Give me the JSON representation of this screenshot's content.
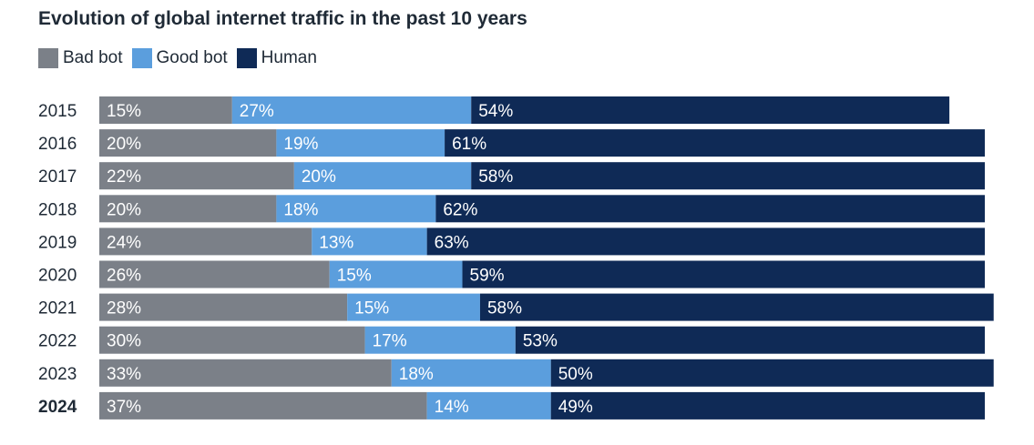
{
  "chart_data": {
    "type": "bar",
    "orientation": "horizontal",
    "stacked": true,
    "title": "Evolution of global internet traffic in the past 10 years",
    "categories": [
      "2015",
      "2016",
      "2017",
      "2018",
      "2019",
      "2020",
      "2021",
      "2022",
      "2023",
      "2024"
    ],
    "highlight_category": "2024",
    "series": [
      {
        "name": "Bad bot",
        "color": "#7b8088",
        "values": [
          15,
          20,
          22,
          20,
          24,
          26,
          28,
          30,
          33,
          37
        ]
      },
      {
        "name": "Good bot",
        "color": "#5b9edd",
        "values": [
          27,
          19,
          20,
          18,
          13,
          15,
          15,
          17,
          18,
          14
        ]
      },
      {
        "name": "Human",
        "color": "#0f2a56",
        "values": [
          54,
          61,
          58,
          62,
          63,
          59,
          58,
          53,
          50,
          49
        ]
      }
    ],
    "value_suffix": "%",
    "xlim": [
      0,
      100
    ],
    "grid": false,
    "legend_position": "top-left"
  }
}
